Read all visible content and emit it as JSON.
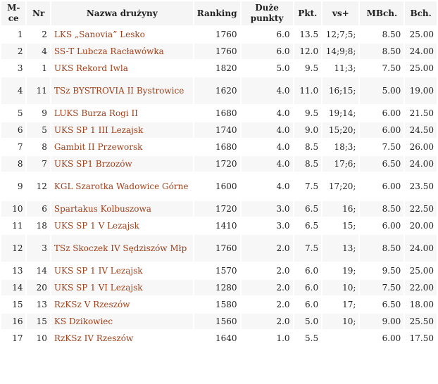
{
  "table": {
    "headers": {
      "mce": "M-ce",
      "nr": "Nr",
      "name": "Nazwa drużyny",
      "ranking": "Ranking",
      "duze_punkty": "Duże punkty",
      "pkt": "Pkt.",
      "vs": "vs+",
      "mbch": "MBch.",
      "bch": "Bch."
    },
    "rows": [
      {
        "mce": "1",
        "nr": "2",
        "name": "LKS „Sanovia” Lesko",
        "ranking": "1760",
        "duze": "6.0",
        "pkt": "13.5",
        "vs": "12;7;5;",
        "mbch": "8.50",
        "bch": "25.00"
      },
      {
        "mce": "2",
        "nr": "4",
        "name": "SS-T Lubcza Racławówka",
        "ranking": "1760",
        "duze": "6.0",
        "pkt": "12.0",
        "vs": "14;9;8;",
        "mbch": "8.50",
        "bch": "24.00"
      },
      {
        "mce": "3",
        "nr": "1",
        "name": "UKS Rekord Iwla",
        "ranking": "1820",
        "duze": "5.0",
        "pkt": "9.5",
        "vs": "11;3;",
        "mbch": "7.50",
        "bch": "25.00"
      },
      {
        "mce": "4",
        "nr": "11",
        "name": "TSz BYSTROVIA II Bystrowice",
        "ranking": "1620",
        "duze": "4.0",
        "pkt": "11.0",
        "vs": "16;15;",
        "mbch": "5.00",
        "bch": "19.00",
        "tall": true
      },
      {
        "mce": "5",
        "nr": "9",
        "name": "LUKS Burza Rogi II",
        "ranking": "1680",
        "duze": "4.0",
        "pkt": "9.5",
        "vs": "19;14;",
        "mbch": "6.00",
        "bch": "21.50"
      },
      {
        "mce": "6",
        "nr": "5",
        "name": "UKS SP 1 III Lezajsk",
        "ranking": "1740",
        "duze": "4.0",
        "pkt": "9.0",
        "vs": "15;20;",
        "mbch": "6.00",
        "bch": "24.50"
      },
      {
        "mce": "7",
        "nr": "8",
        "name": "Gambit II Przeworsk",
        "ranking": "1680",
        "duze": "4.0",
        "pkt": "8.5",
        "vs": "18;3;",
        "mbch": "7.50",
        "bch": "26.00"
      },
      {
        "mce": "8",
        "nr": "7",
        "name": "UKS SP1 Brzozów",
        "ranking": "1720",
        "duze": "4.0",
        "pkt": "8.5",
        "vs": "17;6;",
        "mbch": "6.50",
        "bch": "24.00"
      },
      {
        "mce": "9",
        "nr": "12",
        "name": "KGL Szarotka Wadowice Górne",
        "ranking": "1600",
        "duze": "4.0",
        "pkt": "7.5",
        "vs": "17;20;",
        "mbch": "6.00",
        "bch": "23.50",
        "tall": true
      },
      {
        "mce": "10",
        "nr": "6",
        "name": "Spartakus Kolbuszowa",
        "ranking": "1720",
        "duze": "3.0",
        "pkt": "6.5",
        "vs": "16;",
        "mbch": "8.50",
        "bch": "22.50"
      },
      {
        "mce": "11",
        "nr": "18",
        "name": "UKS SP 1 V Lezajsk",
        "ranking": "1410",
        "duze": "3.0",
        "pkt": "6.5",
        "vs": "15;",
        "mbch": "6.00",
        "bch": "20.00"
      },
      {
        "mce": "12",
        "nr": "3",
        "name": "TSz Skoczek IV Sędziszów Młp",
        "ranking": "1760",
        "duze": "2.0",
        "pkt": "7.5",
        "vs": "13;",
        "mbch": "8.50",
        "bch": "24.00",
        "tall": true
      },
      {
        "mce": "13",
        "nr": "14",
        "name": "UKS SP 1 IV Lezajsk",
        "ranking": "1570",
        "duze": "2.0",
        "pkt": "6.0",
        "vs": "19;",
        "mbch": "9.50",
        "bch": "25.00"
      },
      {
        "mce": "14",
        "nr": "20",
        "name": "UKS SP 1 VI Lezajsk",
        "ranking": "1280",
        "duze": "2.0",
        "pkt": "6.0",
        "vs": "10;",
        "mbch": "7.50",
        "bch": "22.00"
      },
      {
        "mce": "15",
        "nr": "13",
        "name": "RzKSz V Rzeszów",
        "ranking": "1580",
        "duze": "2.0",
        "pkt": "6.0",
        "vs": "17;",
        "mbch": "6.50",
        "bch": "18.00"
      },
      {
        "mce": "16",
        "nr": "15",
        "name": "KS Dzikowiec",
        "ranking": "1560",
        "duze": "2.0",
        "pkt": "5.0",
        "vs": "10;",
        "mbch": "9.00",
        "bch": "25.50"
      },
      {
        "mce": "17",
        "nr": "10",
        "name": "RzKSz IV Rzeszów",
        "ranking": "1640",
        "duze": "1.0",
        "pkt": "5.5",
        "vs": "",
        "mbch": "6.00",
        "bch": "17.50"
      }
    ]
  }
}
